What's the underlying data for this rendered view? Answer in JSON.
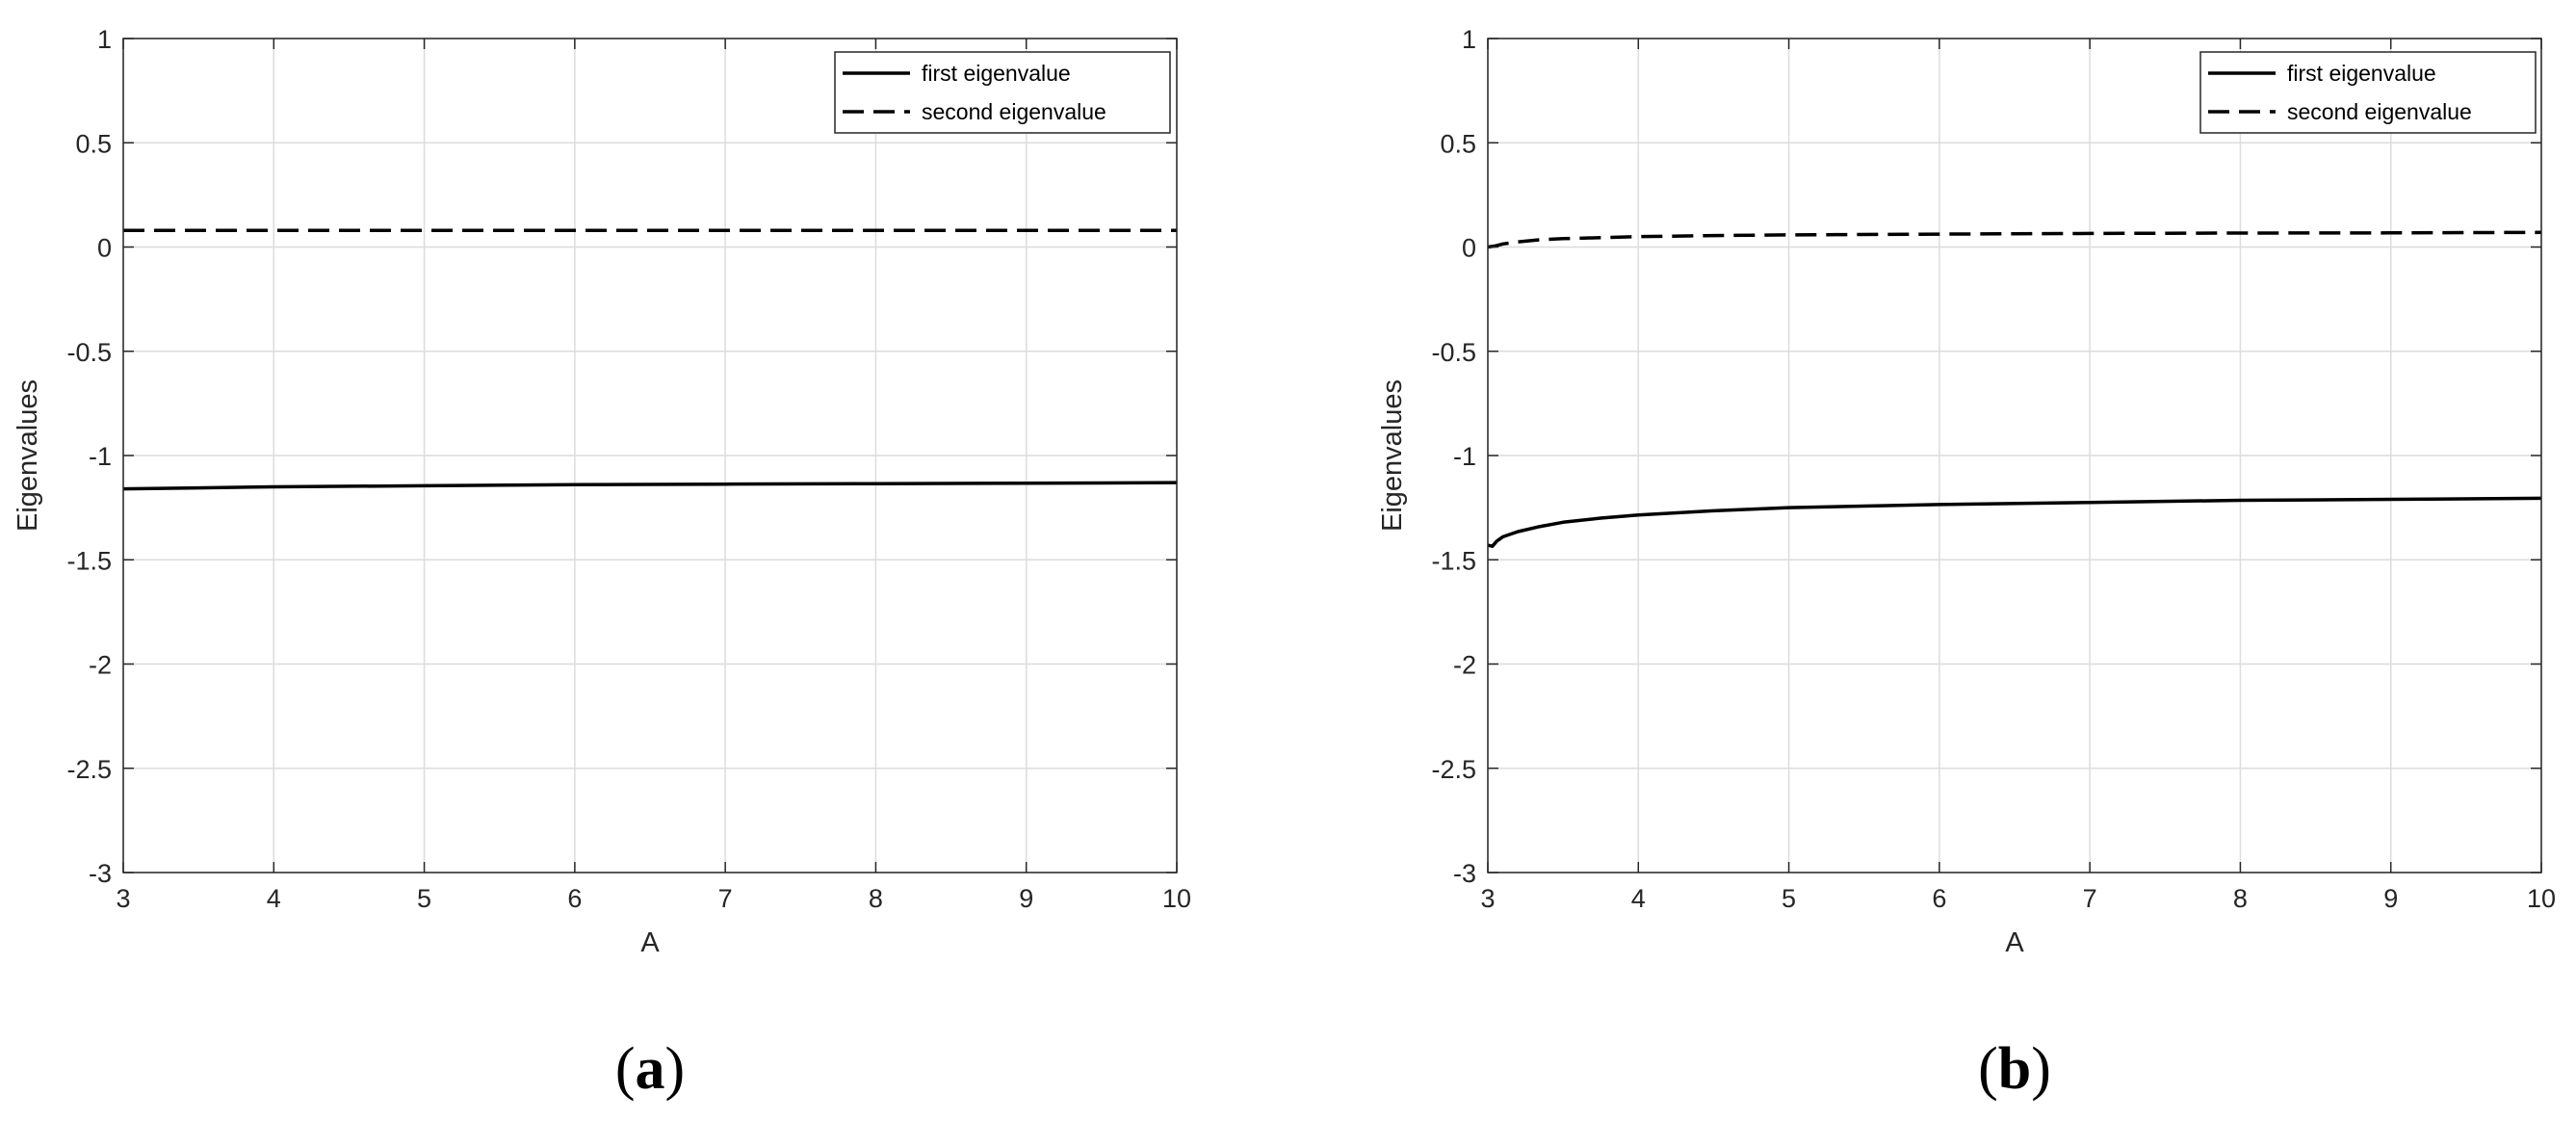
{
  "chart_data": [
    {
      "panel_label": "a",
      "type": "line",
      "xlabel": "A",
      "ylabel": "Eigenvalues",
      "xlim": [
        3,
        10
      ],
      "ylim": [
        -3,
        1
      ],
      "xticks": [
        "3",
        "4",
        "5",
        "6",
        "7",
        "8",
        "9",
        "10"
      ],
      "yticks": [
        "-3",
        "-2.5",
        "-2",
        "-1.5",
        "-1",
        "-0.5",
        "0",
        "0.5",
        "1"
      ],
      "grid": true,
      "legend_position": "top-right",
      "series": [
        {
          "name": "first eigenvalue",
          "line_style": "solid",
          "color": "#000000",
          "x": [
            3,
            3.5,
            4,
            5,
            6,
            7,
            8,
            9,
            10
          ],
          "y": [
            -1.16,
            -1.155,
            -1.15,
            -1.145,
            -1.14,
            -1.137,
            -1.135,
            -1.133,
            -1.13
          ]
        },
        {
          "name": "second eigenvalue",
          "line_style": "dashed",
          "color": "#000000",
          "x": [
            3,
            4,
            5,
            6,
            7,
            8,
            9,
            10
          ],
          "y": [
            0.08,
            0.08,
            0.08,
            0.08,
            0.08,
            0.08,
            0.08,
            0.08
          ]
        }
      ]
    },
    {
      "panel_label": "b",
      "type": "line",
      "xlabel": "A",
      "ylabel": "Eigenvalues",
      "xlim": [
        3,
        10
      ],
      "ylim": [
        -3,
        1
      ],
      "xticks": [
        "3",
        "4",
        "5",
        "6",
        "7",
        "8",
        "9",
        "10"
      ],
      "yticks": [
        "-3",
        "-2.5",
        "-2",
        "-1.5",
        "-1",
        "-0.5",
        "0",
        "0.5",
        "1"
      ],
      "grid": true,
      "legend_position": "top-right",
      "series": [
        {
          "name": "first eigenvalue",
          "line_style": "solid",
          "color": "#000000",
          "x": [
            3,
            3.03,
            3.06,
            3.1,
            3.2,
            3.35,
            3.5,
            3.75,
            4,
            4.5,
            5,
            6,
            7,
            8,
            9,
            10
          ],
          "y": [
            -1.43,
            -1.435,
            -1.41,
            -1.39,
            -1.365,
            -1.34,
            -1.32,
            -1.3,
            -1.285,
            -1.265,
            -1.25,
            -1.235,
            -1.225,
            -1.215,
            -1.21,
            -1.205
          ]
        },
        {
          "name": "second eigenvalue",
          "line_style": "dashed",
          "color": "#000000",
          "x": [
            3,
            3.05,
            3.1,
            3.2,
            3.35,
            3.5,
            3.75,
            4,
            4.5,
            5,
            6,
            7,
            8,
            9,
            10
          ],
          "y": [
            0.0,
            0.005,
            0.015,
            0.025,
            0.035,
            0.04,
            0.045,
            0.05,
            0.055,
            0.058,
            0.062,
            0.065,
            0.067,
            0.068,
            0.07
          ]
        }
      ]
    }
  ]
}
